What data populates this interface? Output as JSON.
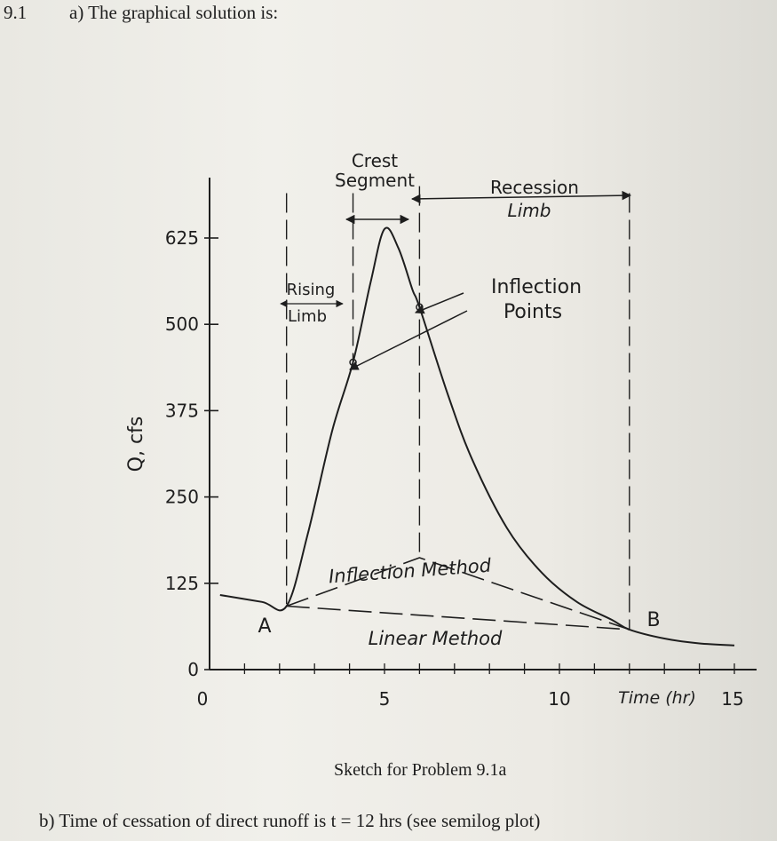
{
  "header": {
    "problem_number": "9.1",
    "part_a": "a) The graphical solution is:"
  },
  "chart_data": {
    "type": "line",
    "title": "",
    "xlabel": "Time (hr)",
    "ylabel": "Q, cfs",
    "xlim": [
      0,
      16
    ],
    "ylim": [
      0,
      700
    ],
    "x_ticks": [
      0,
      5,
      10,
      15
    ],
    "x_tick_labels": [
      "0",
      "5",
      "10",
      "15"
    ],
    "y_ticks": [
      0,
      125,
      250,
      375,
      500,
      625
    ],
    "y_tick_labels": [
      "0",
      "125",
      "250",
      "375",
      "500",
      "625"
    ],
    "grid": false,
    "series": [
      {
        "style": "solid",
        "x": [
          0.3,
          1.5,
          2.2,
          2.8,
          3.5,
          4.1,
          4.6,
          5.0,
          5.4,
          5.8,
          6.0,
          6.8,
          7.5,
          8.5,
          9.5,
          10.5,
          11.5,
          12.0,
          13.0,
          14.0,
          15.0
        ],
        "y": [
          108,
          98,
          92,
          195,
          345,
          445,
          560,
          638,
          610,
          550,
          525,
          400,
          305,
          205,
          140,
          98,
          72,
          58,
          45,
          38,
          35
        ]
      },
      {
        "name": "Inflection Method",
        "style": "dashed",
        "x": [
          2.2,
          6.0,
          12.0
        ],
        "y": [
          92,
          162,
          58
        ]
      },
      {
        "name": "Linear Method",
        "style": "dashed",
        "x": [
          2.2,
          12.0
        ],
        "y": [
          92,
          58
        ]
      }
    ],
    "vertical_lines": [
      {
        "x": 2.2,
        "y1": 95,
        "y2": 690
      },
      {
        "x": 4.1,
        "y1": 445,
        "y2": 690
      },
      {
        "x": 6.0,
        "y1": 162,
        "y2": 700
      },
      {
        "x": 12.0,
        "y1": 58,
        "y2": 690
      }
    ],
    "inflection_points": [
      {
        "x": 4.1,
        "y": 445
      },
      {
        "x": 6.0,
        "y": 525
      }
    ],
    "labels": {
      "crest_1": "Crest",
      "crest_2": "Segment",
      "recession_1": "Recession",
      "recession_2": "Limb",
      "rising_1": "Rising",
      "rising_2": "Limb",
      "inflection_1": "Inflection",
      "inflection_2": "Points",
      "inflection_method": "Inflection Method",
      "linear_method": "Linear Method",
      "point_a": "A",
      "point_b": "B"
    }
  },
  "caption": "Sketch for Problem 9.1a",
  "part_b": "b) Time of cessation of direct runoff is t = 12 hrs (see semilog plot)"
}
